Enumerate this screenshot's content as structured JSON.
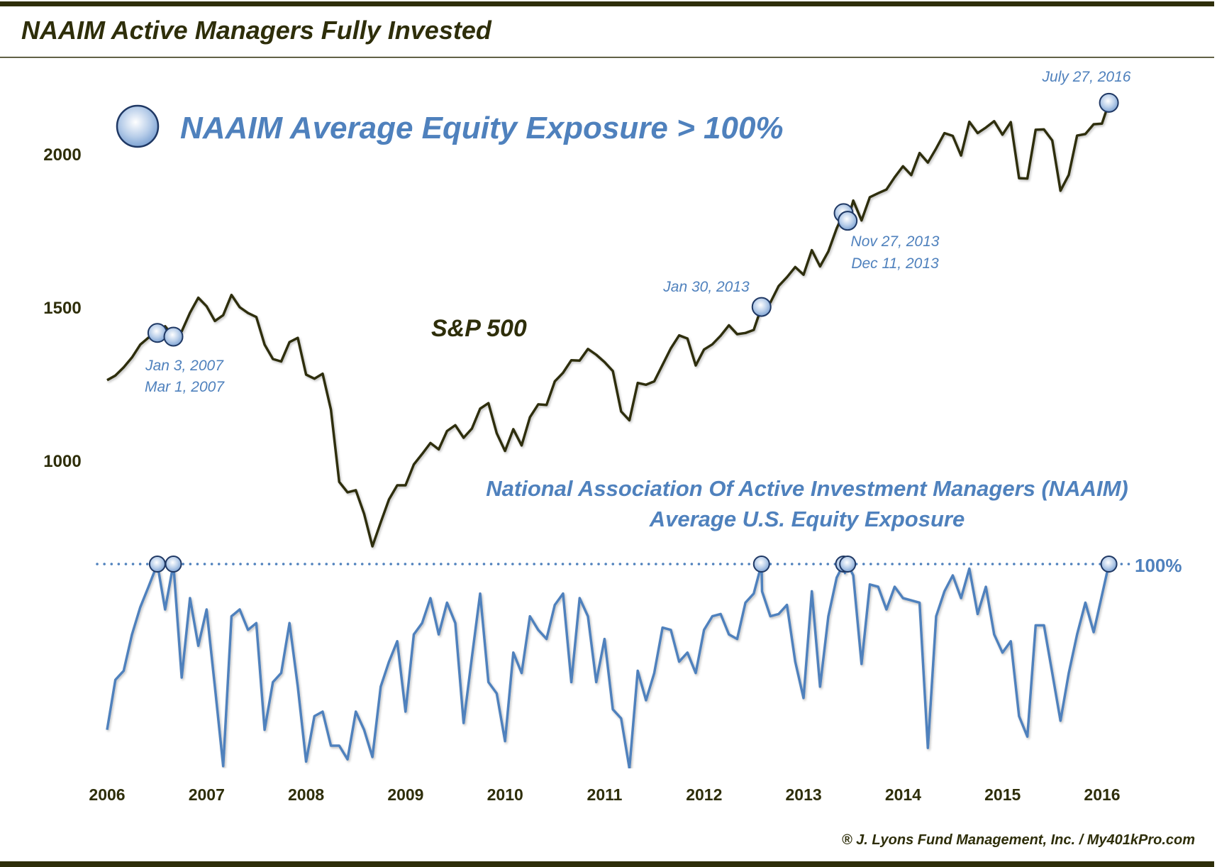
{
  "chart_data": {
    "type": "line",
    "title": "NAAIM Active Managers Fully Invested",
    "legend": {
      "label": "NAAIM Average Equity Exposure > 100%",
      "placement": "top-left",
      "marker": "circle"
    },
    "colors": {
      "sp500": "#2e2e0a",
      "naaim": "#4f81bd",
      "marker_fill": "#c6d9f1",
      "marker_stroke": "#1f3864",
      "text_dark": "#2e2e0a"
    },
    "x_ticks": [
      "2006",
      "2007",
      "2008",
      "2009",
      "2010",
      "2011",
      "2012",
      "2013",
      "2014",
      "2015",
      "2016"
    ],
    "y_ticks": [
      {
        "value": 2000,
        "label": "2000"
      },
      {
        "value": 1500,
        "label": "1500"
      },
      {
        "value": 1000,
        "label": "1000"
      }
    ],
    "grid": false,
    "series": [
      {
        "name": "S&P 500",
        "axis": "left",
        "points": [
          [
            "2006-07",
            1262
          ],
          [
            "2006-08",
            1277
          ],
          [
            "2006-09",
            1304
          ],
          [
            "2006-10",
            1336
          ],
          [
            "2006-11",
            1378
          ],
          [
            "2006-12",
            1401
          ],
          [
            "2007-01-03",
            1416
          ],
          [
            "2007-02",
            1438
          ],
          [
            "2007-03-01",
            1404
          ],
          [
            "2007-04",
            1421
          ],
          [
            "2007-05",
            1482
          ],
          [
            "2007-06",
            1531
          ],
          [
            "2007-07",
            1503
          ],
          [
            "2007-08",
            1455
          ],
          [
            "2007-09",
            1474
          ],
          [
            "2007-10",
            1540
          ],
          [
            "2007-11",
            1500
          ],
          [
            "2007-12",
            1481
          ],
          [
            "2008-01",
            1468
          ],
          [
            "2008-02",
            1378
          ],
          [
            "2008-03",
            1331
          ],
          [
            "2008-04",
            1323
          ],
          [
            "2008-05",
            1386
          ],
          [
            "2008-06",
            1400
          ],
          [
            "2008-07",
            1280
          ],
          [
            "2008-08",
            1267
          ],
          [
            "2008-09",
            1283
          ],
          [
            "2008-10",
            1166
          ],
          [
            "2008-11",
            930
          ],
          [
            "2008-12",
            896
          ],
          [
            "2009-01",
            903
          ],
          [
            "2009-02",
            826
          ],
          [
            "2009-03",
            720
          ],
          [
            "2009-04",
            798
          ],
          [
            "2009-05",
            873
          ],
          [
            "2009-06",
            919
          ],
          [
            "2009-07",
            919
          ],
          [
            "2009-08",
            987
          ],
          [
            "2009-09",
            1021
          ],
          [
            "2009-10",
            1057
          ],
          [
            "2009-11",
            1036
          ],
          [
            "2009-12",
            1096
          ],
          [
            "2010-01",
            1115
          ],
          [
            "2010-02",
            1074
          ],
          [
            "2010-03",
            1104
          ],
          [
            "2010-04",
            1169
          ],
          [
            "2010-05",
            1187
          ],
          [
            "2010-06",
            1089
          ],
          [
            "2010-07",
            1031
          ],
          [
            "2010-08",
            1102
          ],
          [
            "2010-09",
            1049
          ],
          [
            "2010-10",
            1141
          ],
          [
            "2010-11",
            1183
          ],
          [
            "2010-12",
            1181
          ],
          [
            "2011-01",
            1258
          ],
          [
            "2011-02",
            1286
          ],
          [
            "2011-03",
            1327
          ],
          [
            "2011-04",
            1326
          ],
          [
            "2011-05",
            1364
          ],
          [
            "2011-06",
            1345
          ],
          [
            "2011-07",
            1321
          ],
          [
            "2011-08",
            1292
          ],
          [
            "2011-09",
            1160
          ],
          [
            "2011-10",
            1131
          ],
          [
            "2011-11",
            1253
          ],
          [
            "2011-12",
            1247
          ],
          [
            "2012-01",
            1258
          ],
          [
            "2012-02",
            1312
          ],
          [
            "2012-03",
            1366
          ],
          [
            "2012-04",
            1408
          ],
          [
            "2012-05",
            1398
          ],
          [
            "2012-06",
            1310
          ],
          [
            "2012-07",
            1362
          ],
          [
            "2012-08",
            1379
          ],
          [
            "2012-09",
            1407
          ],
          [
            "2012-10",
            1441
          ],
          [
            "2012-11",
            1412
          ],
          [
            "2012-12",
            1416
          ],
          [
            "2013-01",
            1426
          ],
          [
            "2013-01-30",
            1501
          ],
          [
            "2013-02",
            1498
          ],
          [
            "2013-03",
            1515
          ],
          [
            "2013-04",
            1569
          ],
          [
            "2013-05",
            1598
          ],
          [
            "2013-06",
            1631
          ],
          [
            "2013-07",
            1606
          ],
          [
            "2013-08",
            1686
          ],
          [
            "2013-09",
            1633
          ],
          [
            "2013-10",
            1682
          ],
          [
            "2013-11",
            1757
          ],
          [
            "2013-11-27",
            1807
          ],
          [
            "2013-12",
            1806
          ],
          [
            "2013-12-11",
            1782
          ],
          [
            "2014-01",
            1848
          ],
          [
            "2014-02",
            1783
          ],
          [
            "2014-03",
            1859
          ],
          [
            "2014-04",
            1872
          ],
          [
            "2014-05",
            1884
          ],
          [
            "2014-06",
            1924
          ],
          [
            "2014-07",
            1960
          ],
          [
            "2014-08",
            1931
          ],
          [
            "2014-09",
            2003
          ],
          [
            "2014-10",
            1972
          ],
          [
            "2014-11",
            2018
          ],
          [
            "2014-12",
            2068
          ],
          [
            "2015-01",
            2059
          ],
          [
            "2015-02",
            1995
          ],
          [
            "2015-03",
            2105
          ],
          [
            "2015-04",
            2068
          ],
          [
            "2015-05",
            2086
          ],
          [
            "2015-06",
            2107
          ],
          [
            "2015-07",
            2063
          ],
          [
            "2015-08",
            2104
          ],
          [
            "2015-09",
            1921
          ],
          [
            "2015-10",
            1920
          ],
          [
            "2015-11",
            2079
          ],
          [
            "2015-12",
            2080
          ],
          [
            "2016-01",
            2044
          ],
          [
            "2016-02",
            1880
          ],
          [
            "2016-03",
            1932
          ],
          [
            "2016-04",
            2060
          ],
          [
            "2016-05",
            2065
          ],
          [
            "2016-06",
            2097
          ],
          [
            "2016-07",
            2099
          ],
          [
            "2016-07-27",
            2167
          ]
        ]
      },
      {
        "name": "National Association Of Active Investment Managers (NAAIM) Average U.S. Equity Exposure",
        "axis": "lower-panel",
        "reference_line": {
          "value": 100,
          "label": "100%"
        },
        "points": [
          [
            "2006-07",
            27
          ],
          [
            "2006-08",
            49
          ],
          [
            "2006-09",
            53
          ],
          [
            "2006-10",
            69
          ],
          [
            "2006-11",
            81
          ],
          [
            "2006-12",
            90
          ],
          [
            "2007-01-03",
            100
          ],
          [
            "2007-02",
            80
          ],
          [
            "2007-03-01",
            100
          ],
          [
            "2007-04",
            50
          ],
          [
            "2007-05",
            85
          ],
          [
            "2007-06",
            64
          ],
          [
            "2007-07",
            80
          ],
          [
            "2007-08",
            46
          ],
          [
            "2007-09",
            11
          ],
          [
            "2007-10",
            77
          ],
          [
            "2007-11",
            80
          ],
          [
            "2007-12",
            71
          ],
          [
            "2008-01",
            74
          ],
          [
            "2008-02",
            27
          ],
          [
            "2008-03",
            48
          ],
          [
            "2008-04",
            52
          ],
          [
            "2008-05",
            74
          ],
          [
            "2008-06",
            46
          ],
          [
            "2008-07",
            13
          ],
          [
            "2008-08",
            33
          ],
          [
            "2008-09",
            35
          ],
          [
            "2008-10",
            20
          ],
          [
            "2008-11",
            20
          ],
          [
            "2008-12",
            14
          ],
          [
            "2009-01",
            35
          ],
          [
            "2009-02",
            27
          ],
          [
            "2009-03",
            15
          ],
          [
            "2009-04",
            46
          ],
          [
            "2009-05",
            57
          ],
          [
            "2009-06",
            66
          ],
          [
            "2009-07",
            35
          ],
          [
            "2009-08",
            69
          ],
          [
            "2009-09",
            74
          ],
          [
            "2009-10",
            85
          ],
          [
            "2009-11",
            69
          ],
          [
            "2009-12",
            83
          ],
          [
            "2010-01",
            74
          ],
          [
            "2010-02",
            30
          ],
          [
            "2010-03",
            59
          ],
          [
            "2010-04",
            87
          ],
          [
            "2010-05",
            48
          ],
          [
            "2010-06",
            43
          ],
          [
            "2010-07",
            22
          ],
          [
            "2010-08",
            61
          ],
          [
            "2010-09",
            52
          ],
          [
            "2010-10",
            77
          ],
          [
            "2010-11",
            71
          ],
          [
            "2010-12",
            67
          ],
          [
            "2011-01",
            82
          ],
          [
            "2011-02",
            87
          ],
          [
            "2011-03",
            48
          ],
          [
            "2011-04",
            85
          ],
          [
            "2011-05",
            77
          ],
          [
            "2011-06",
            48
          ],
          [
            "2011-07",
            67
          ],
          [
            "2011-08",
            36
          ],
          [
            "2011-09",
            32
          ],
          [
            "2011-10",
            10
          ],
          [
            "2011-11",
            53
          ],
          [
            "2011-12",
            40
          ],
          [
            "2012-01",
            52
          ],
          [
            "2012-02",
            72
          ],
          [
            "2012-03",
            71
          ],
          [
            "2012-04",
            57
          ],
          [
            "2012-05",
            61
          ],
          [
            "2012-06",
            52
          ],
          [
            "2012-07",
            71
          ],
          [
            "2012-08",
            77
          ],
          [
            "2012-09",
            78
          ],
          [
            "2012-10",
            69
          ],
          [
            "2012-11",
            67
          ],
          [
            "2012-12",
            83
          ],
          [
            "2013-01",
            87
          ],
          [
            "2013-01-30",
            100
          ],
          [
            "2013-02",
            88
          ],
          [
            "2013-03",
            77
          ],
          [
            "2013-04",
            78
          ],
          [
            "2013-05",
            82
          ],
          [
            "2013-06",
            57
          ],
          [
            "2013-07",
            41
          ],
          [
            "2013-08",
            88
          ],
          [
            "2013-09",
            46
          ],
          [
            "2013-10",
            77
          ],
          [
            "2013-11",
            94
          ],
          [
            "2013-11-27",
            100
          ],
          [
            "2013-12",
            96
          ],
          [
            "2013-12-11",
            100
          ],
          [
            "2014-01",
            95
          ],
          [
            "2014-02",
            56
          ],
          [
            "2014-03",
            91
          ],
          [
            "2014-04",
            90
          ],
          [
            "2014-05",
            80
          ],
          [
            "2014-06",
            90
          ],
          [
            "2014-07",
            85
          ],
          [
            "2014-08",
            84
          ],
          [
            "2014-09",
            83
          ],
          [
            "2014-10",
            19
          ],
          [
            "2014-11",
            77
          ],
          [
            "2014-12",
            88
          ],
          [
            "2015-01",
            95
          ],
          [
            "2015-02",
            85
          ],
          [
            "2015-03",
            98
          ],
          [
            "2015-04",
            78
          ],
          [
            "2015-05",
            90
          ],
          [
            "2015-06",
            69
          ],
          [
            "2015-07",
            61
          ],
          [
            "2015-08",
            66
          ],
          [
            "2015-09",
            33
          ],
          [
            "2015-10",
            24
          ],
          [
            "2015-11",
            73
          ],
          [
            "2015-12",
            73
          ],
          [
            "2016-01",
            52
          ],
          [
            "2016-02",
            31
          ],
          [
            "2016-03",
            52
          ],
          [
            "2016-04",
            69
          ],
          [
            "2016-05",
            83
          ],
          [
            "2016-06",
            70
          ],
          [
            "2016-07-27",
            100
          ]
        ]
      }
    ],
    "highlight_dates": [
      {
        "date": "2007-01-03",
        "label": "Jan 3, 2007",
        "sp500": 1416
      },
      {
        "date": "2007-03-01",
        "label": "Mar 1, 2007",
        "sp500": 1404
      },
      {
        "date": "2013-01-30",
        "label": "Jan 30, 2013",
        "sp500": 1501
      },
      {
        "date": "2013-11-27",
        "label": "Nov 27, 2013",
        "sp500": 1807
      },
      {
        "date": "2013-12-11",
        "label": "Dec 11, 2013",
        "sp500": 1782
      },
      {
        "date": "2016-07-27",
        "label": "July 27, 2016",
        "sp500": 2167
      }
    ],
    "labels": {
      "sp500": "S&P 500",
      "naaim_line1": "National Association Of Active Investment Managers (NAAIM)",
      "naaim_line2": "Average U.S. Equity Exposure"
    },
    "credit": "® J. Lyons Fund Management, Inc. / My401kPro.com"
  }
}
